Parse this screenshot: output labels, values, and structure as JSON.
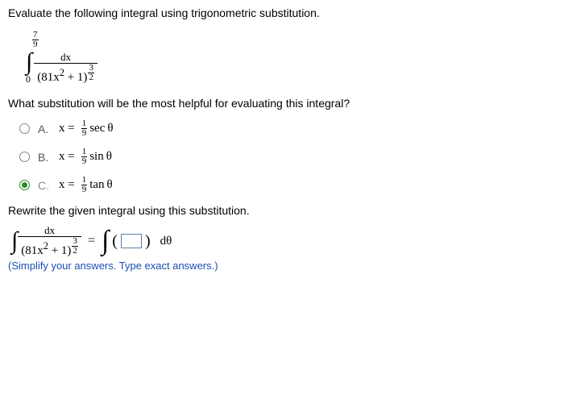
{
  "prompt": "Evaluate the following integral using trigonometric substitution.",
  "integral": {
    "upper_num": "7",
    "upper_den": "9",
    "lower": "0",
    "numerator": "dx",
    "base": "(81x",
    "base_sup": "2",
    "base_tail": " + 1)",
    "exp_num": "3",
    "exp_den": "2"
  },
  "subq": "What substitution will be the most helpful for evaluating this integral?",
  "options": {
    "A": {
      "label": "A.",
      "lhs": "x =",
      "coef_num": "1",
      "coef_den": "9",
      "fn": "sec",
      "arg": "θ"
    },
    "B": {
      "label": "B.",
      "lhs": "x =",
      "coef_num": "1",
      "coef_den": "9",
      "fn": "sin",
      "arg": "θ"
    },
    "C": {
      "label": "C.",
      "lhs": "x =",
      "coef_num": "1",
      "coef_den": "9",
      "fn": "tan",
      "arg": "θ"
    }
  },
  "selected": "C",
  "rewrite_prompt": "Rewrite the given integral using this substitution.",
  "rhs_dvar": "dθ",
  "hint": "(Simplify your answers. Type exact answers.)"
}
